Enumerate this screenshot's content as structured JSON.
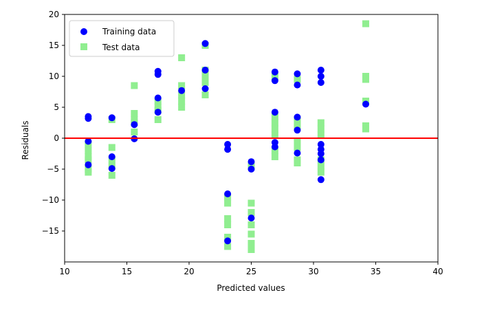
{
  "chart_data": {
    "type": "scatter",
    "title": "",
    "xlabel": "Predicted values",
    "ylabel": "Residuals",
    "xlim": [
      10,
      40
    ],
    "ylim": [
      -20,
      20
    ],
    "xticks": [
      10,
      15,
      20,
      25,
      30,
      35,
      40
    ],
    "yticks": [
      -15,
      -10,
      -5,
      0,
      5,
      10,
      15,
      20
    ],
    "grid": false,
    "legend_position": "top-left",
    "hline": {
      "y": 0,
      "color": "#ff0000"
    },
    "series": [
      {
        "name": "Training data",
        "marker": "circle",
        "color": "#0000ff",
        "points": [
          [
            11.9,
            3.5
          ],
          [
            11.9,
            3.2
          ],
          [
            11.9,
            -0.5
          ],
          [
            11.9,
            -4.3
          ],
          [
            13.8,
            3.3
          ],
          [
            13.8,
            -3.0
          ],
          [
            13.8,
            -4.9
          ],
          [
            15.6,
            2.2
          ],
          [
            15.6,
            -0.1
          ],
          [
            17.5,
            10.8
          ],
          [
            17.5,
            10.3
          ],
          [
            17.5,
            6.5
          ],
          [
            17.5,
            4.2
          ],
          [
            19.4,
            7.7
          ],
          [
            21.3,
            15.3
          ],
          [
            21.3,
            11.0
          ],
          [
            21.3,
            8.0
          ],
          [
            23.1,
            -1.0
          ],
          [
            23.1,
            -1.8
          ],
          [
            23.1,
            -9.0
          ],
          [
            23.1,
            -16.6
          ],
          [
            25.0,
            -3.8
          ],
          [
            25.0,
            -5.0
          ],
          [
            25.0,
            -12.9
          ],
          [
            26.9,
            10.7
          ],
          [
            26.9,
            9.3
          ],
          [
            26.9,
            4.2
          ],
          [
            26.9,
            -0.7
          ],
          [
            26.9,
            -1.4
          ],
          [
            28.7,
            10.4
          ],
          [
            28.7,
            8.6
          ],
          [
            28.7,
            3.4
          ],
          [
            28.7,
            1.3
          ],
          [
            28.7,
            -2.4
          ],
          [
            30.6,
            11.0
          ],
          [
            30.6,
            10.0
          ],
          [
            30.6,
            9.0
          ],
          [
            30.6,
            -1.0
          ],
          [
            30.6,
            -1.8
          ],
          [
            30.6,
            -2.5
          ],
          [
            30.6,
            -3.5
          ],
          [
            30.6,
            -6.7
          ],
          [
            34.2,
            5.5
          ]
        ]
      },
      {
        "name": "Test data",
        "marker": "square",
        "color": "#90ee90",
        "points": [
          [
            11.9,
            -1.0
          ],
          [
            11.9,
            -2.0
          ],
          [
            11.9,
            -3.0
          ],
          [
            11.9,
            -3.5
          ],
          [
            11.9,
            -5.0
          ],
          [
            11.9,
            -5.5
          ],
          [
            13.8,
            3.0
          ],
          [
            13.8,
            -1.5
          ],
          [
            13.8,
            -3.5
          ],
          [
            13.8,
            -4.5
          ],
          [
            13.8,
            -6.0
          ],
          [
            15.6,
            8.5
          ],
          [
            15.6,
            4.0
          ],
          [
            15.6,
            3.0
          ],
          [
            15.6,
            2.5
          ],
          [
            15.6,
            1.0
          ],
          [
            17.5,
            6.0
          ],
          [
            17.5,
            5.0
          ],
          [
            17.5,
            4.5
          ],
          [
            17.5,
            3.0
          ],
          [
            19.4,
            13.0
          ],
          [
            19.4,
            8.5
          ],
          [
            19.4,
            7.0
          ],
          [
            19.4,
            6.0
          ],
          [
            19.4,
            5.0
          ],
          [
            21.3,
            15.0
          ],
          [
            21.3,
            11.0
          ],
          [
            21.3,
            10.0
          ],
          [
            21.3,
            9.0
          ],
          [
            21.3,
            7.0
          ],
          [
            23.1,
            -9.5
          ],
          [
            23.1,
            -10.5
          ],
          [
            23.1,
            -13.0
          ],
          [
            23.1,
            -14.0
          ],
          [
            23.1,
            -16.0
          ],
          [
            23.1,
            -17.5
          ],
          [
            25.0,
            -4.5
          ],
          [
            25.0,
            -10.5
          ],
          [
            25.0,
            -12.0
          ],
          [
            25.0,
            -14.0
          ],
          [
            25.0,
            -15.5
          ],
          [
            25.0,
            -17.0
          ],
          [
            25.0,
            -18.0
          ],
          [
            26.9,
            10.0
          ],
          [
            26.9,
            3.5
          ],
          [
            26.9,
            2.5
          ],
          [
            26.9,
            1.5
          ],
          [
            26.9,
            0.5
          ],
          [
            26.9,
            -2.0
          ],
          [
            26.9,
            -3.0
          ],
          [
            28.7,
            9.5
          ],
          [
            28.7,
            3.0
          ],
          [
            28.7,
            2.0
          ],
          [
            28.7,
            -0.5
          ],
          [
            28.7,
            -1.5
          ],
          [
            28.7,
            -3.5
          ],
          [
            28.7,
            -4.0
          ],
          [
            30.6,
            2.5
          ],
          [
            30.6,
            1.5
          ],
          [
            30.6,
            0.5
          ],
          [
            30.6,
            -3.5
          ],
          [
            30.6,
            -4.5
          ],
          [
            30.6,
            -5.5
          ],
          [
            34.2,
            18.5
          ],
          [
            34.2,
            10.0
          ],
          [
            34.2,
            9.5
          ],
          [
            34.2,
            6.0
          ],
          [
            34.2,
            2.0
          ],
          [
            34.2,
            1.5
          ]
        ]
      }
    ]
  }
}
